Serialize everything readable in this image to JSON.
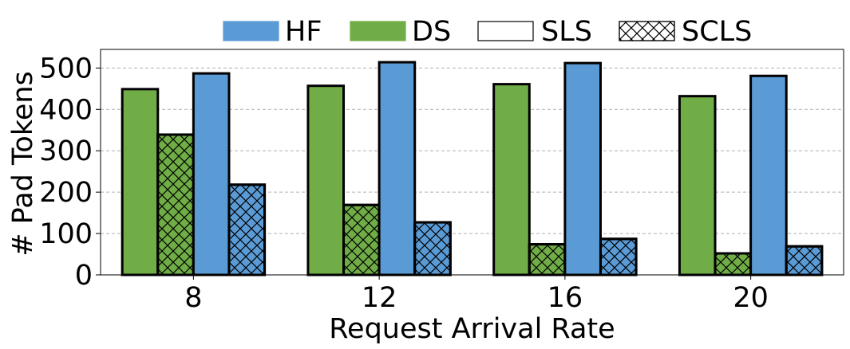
{
  "chart_data": {
    "type": "bar",
    "categories": [
      "8",
      "12",
      "16",
      "20"
    ],
    "xlabel": "Request Arrival Rate",
    "ylabel": "# Pad Tokens",
    "ylim": [
      0,
      545
    ],
    "yticks": [
      0,
      100,
      200,
      300,
      400,
      500
    ],
    "grid": true,
    "legend_position": "top",
    "legend": [
      {
        "name": "HF",
        "style": "solid",
        "color": "#5b9bd5"
      },
      {
        "name": "DS",
        "style": "solid",
        "color": "#70ad47"
      },
      {
        "name": "SLS",
        "style": "hollow",
        "color": "#ffffff"
      },
      {
        "name": "SCLS",
        "style": "hatched",
        "color": "#ffffff"
      }
    ],
    "series": [
      {
        "framework": "DS",
        "scheduler": "SLS",
        "color": "#70ad47",
        "hatched": false,
        "values": [
          449,
          457,
          461,
          432
        ]
      },
      {
        "framework": "DS",
        "scheduler": "SCLS",
        "color": "#70ad47",
        "hatched": true,
        "values": [
          339,
          169,
          74,
          52
        ]
      },
      {
        "framework": "HF",
        "scheduler": "SLS",
        "color": "#5b9bd5",
        "hatched": false,
        "values": [
          487,
          514,
          512,
          481
        ]
      },
      {
        "framework": "HF",
        "scheduler": "SCLS",
        "color": "#5b9bd5",
        "hatched": true,
        "values": [
          218,
          127,
          87,
          69
        ]
      }
    ]
  }
}
